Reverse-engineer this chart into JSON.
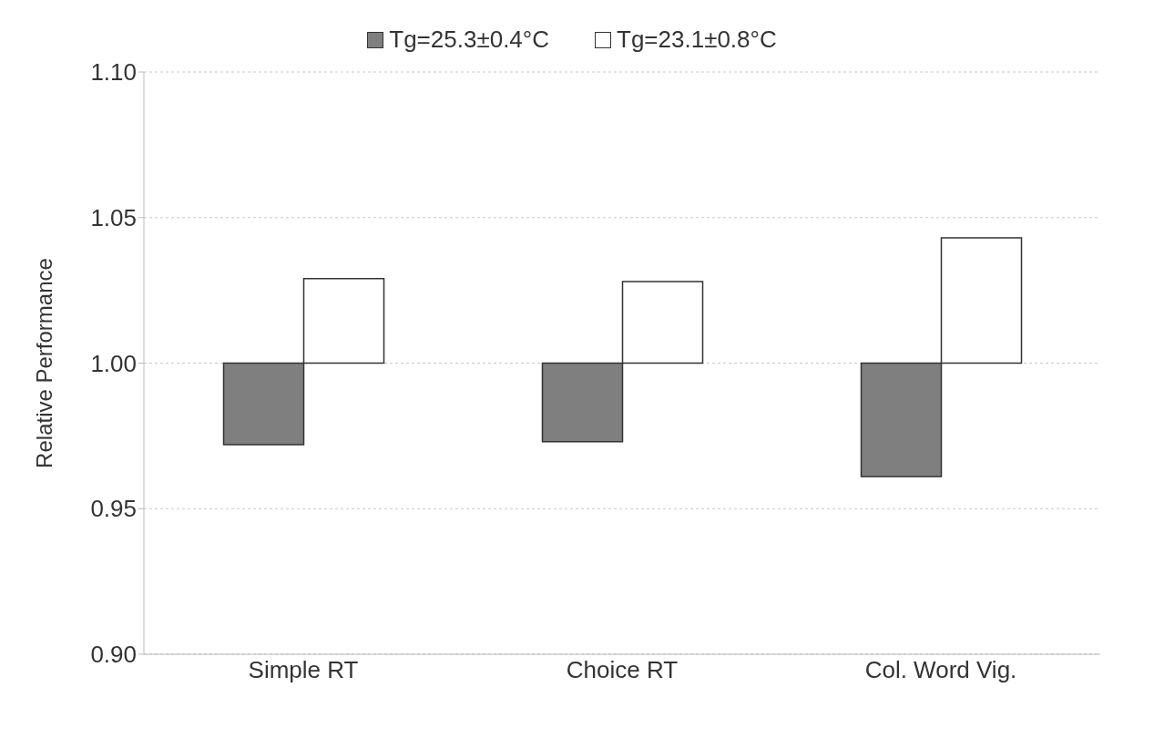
{
  "chart_data": {
    "type": "bar",
    "ylabel": "Relative Performance",
    "categories": [
      "Simple RT",
      "Choice RT",
      "Col. Word Vig."
    ],
    "series": [
      {
        "name": "Tg=25.3±0.4°C",
        "color": "#7f7f7f",
        "base": [
          1,
          1,
          1
        ],
        "values": [
          -0.028,
          -0.027,
          -0.039
        ]
      },
      {
        "name": "Tg=23.1±0.8°C",
        "color": "#ffffff",
        "base": [
          1,
          1,
          1
        ],
        "values": [
          0.029,
          0.028,
          0.043
        ]
      }
    ],
    "ylim": [
      0.9,
      1.1
    ],
    "yticks": [
      {
        "value": 0.9,
        "label": "0.90"
      },
      {
        "value": 0.95,
        "label": "0.95"
      },
      {
        "value": 1,
        "label": "1.00"
      },
      {
        "value": 1.05,
        "label": "1.05"
      },
      {
        "value": 1.1,
        "label": "1.10"
      }
    ],
    "grid": "y",
    "legend": "top"
  }
}
